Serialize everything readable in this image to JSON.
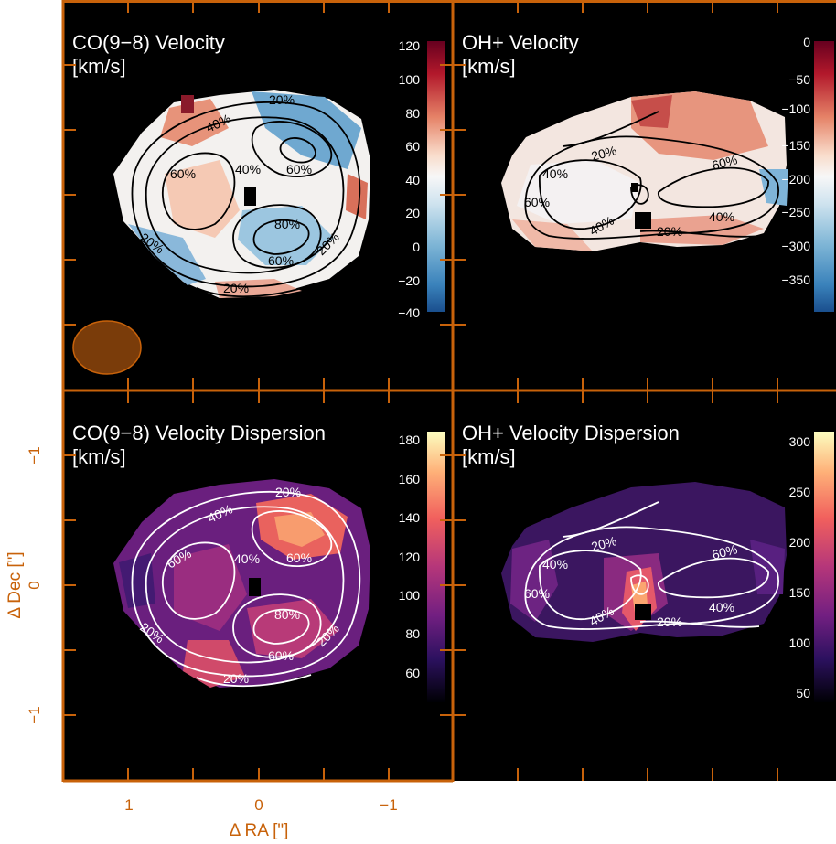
{
  "colors": {
    "frame": "#c8620a",
    "background": "#000000",
    "beam": "#7a3c0a",
    "contour_black": "#000000",
    "contour_white": "#ffffff"
  },
  "axes": {
    "xlabel": "Δ RA [\"]",
    "ylabel": "Δ Dec [\"]",
    "x_ticks": [
      "1",
      "0",
      "−1"
    ],
    "y_ticks": [
      "−1",
      "0",
      "−1"
    ]
  },
  "chart_data": [
    {
      "type": "heatmap",
      "title": "CO(9−8) Velocity",
      "subtitle": "[km/s]",
      "colormap": "red-white-blue (diverging)",
      "colorbar_ticks": [
        "120",
        "100",
        "80",
        "60",
        "40",
        "20",
        "0",
        "−20",
        "−40"
      ],
      "colorbar_range": [
        -40,
        120
      ],
      "contour_levels": [
        "20%",
        "40%",
        "60%",
        "80%"
      ],
      "contour_color": "black",
      "beam_shown": true
    },
    {
      "type": "heatmap",
      "title": "OH+ Velocity",
      "subtitle": "[km/s]",
      "colormap": "red-white-blue (diverging)",
      "colorbar_ticks": [
        "0",
        "−50",
        "−100",
        "−150",
        "−200",
        "−250",
        "−300",
        "−350"
      ],
      "colorbar_range": [
        -380,
        0
      ],
      "contour_levels": [
        "20%",
        "40%",
        "60%"
      ],
      "contour_color": "black"
    },
    {
      "type": "heatmap",
      "title": "CO(9−8) Velocity Dispersion",
      "subtitle": "[km/s]",
      "colormap": "magma",
      "colorbar_ticks": [
        "180",
        "160",
        "140",
        "120",
        "100",
        "80",
        "60"
      ],
      "colorbar_range": [
        45,
        185
      ],
      "contour_levels": [
        "20%",
        "40%",
        "60%",
        "80%"
      ],
      "contour_color": "white"
    },
    {
      "type": "heatmap",
      "title": "OH+ Velocity Dispersion",
      "subtitle": "[km/s]",
      "colormap": "magma",
      "colorbar_ticks": [
        "300",
        "250",
        "200",
        "150",
        "100",
        "50"
      ],
      "colorbar_range": [
        30,
        315
      ],
      "contour_levels": [
        "20%",
        "40%",
        "60%"
      ],
      "contour_color": "white"
    }
  ]
}
